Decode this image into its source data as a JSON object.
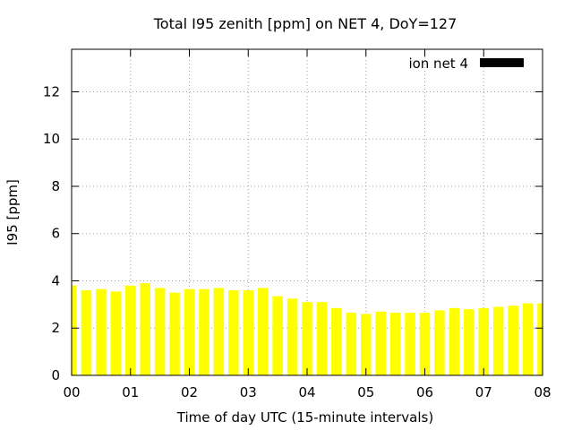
{
  "chart_data": {
    "type": "bar",
    "title": "Total I95 zenith [ppm] on NET 4, DoY=127",
    "xlabel": "Time of day UTC (15-minute intervals)",
    "ylabel": "I95 [ppm]",
    "xlim": [
      0,
      8
    ],
    "ylim": [
      0,
      13.8
    ],
    "x_ticks": [
      "00",
      "01",
      "02",
      "03",
      "04",
      "05",
      "06",
      "07",
      "08"
    ],
    "y_ticks": [
      "0",
      "2",
      "4",
      "6",
      "8",
      "10",
      "12"
    ],
    "grid": true,
    "legend_position": "top-right",
    "bar_color": "#ffff00",
    "series": [
      {
        "name": "ion net 4",
        "x": [
          0.0,
          0.25,
          0.5,
          0.75,
          1.0,
          1.25,
          1.5,
          1.75,
          2.0,
          2.25,
          2.5,
          2.75,
          3.0,
          3.25,
          3.5,
          3.75,
          4.0,
          4.25,
          4.5,
          4.75,
          5.0,
          5.25,
          5.5,
          5.75,
          6.0,
          6.25,
          6.5,
          6.75,
          7.0,
          7.25,
          7.5,
          7.75,
          8.0
        ],
        "values": [
          3.8,
          3.6,
          3.65,
          3.55,
          3.8,
          3.9,
          3.7,
          3.5,
          3.65,
          3.65,
          3.7,
          3.6,
          3.6,
          3.7,
          3.35,
          3.25,
          3.1,
          3.1,
          2.85,
          2.65,
          2.6,
          2.7,
          2.65,
          2.65,
          2.65,
          2.75,
          2.85,
          2.8,
          2.85,
          2.9,
          2.95,
          3.05,
          3.05
        ]
      }
    ]
  }
}
